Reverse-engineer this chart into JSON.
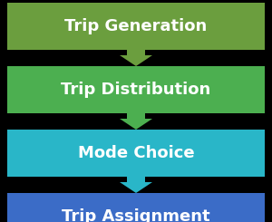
{
  "background_color": "#000000",
  "boxes": [
    {
      "label": "Trip Generation",
      "color": "#6B9E3E"
    },
    {
      "label": "Trip Distribution",
      "color": "#4CAF50"
    },
    {
      "label": "Mode Choice",
      "color": "#29B6C8"
    },
    {
      "label": "Trip Assignment",
      "color": "#3B6CC7"
    }
  ],
  "arrow_colors": [
    "#6B9E3E",
    "#4CAF50",
    "#29B6C8"
  ],
  "text_color": "#FFFFFF",
  "font_size": 13,
  "fig_width": 3.0,
  "fig_height": 2.45,
  "dpi": 100
}
